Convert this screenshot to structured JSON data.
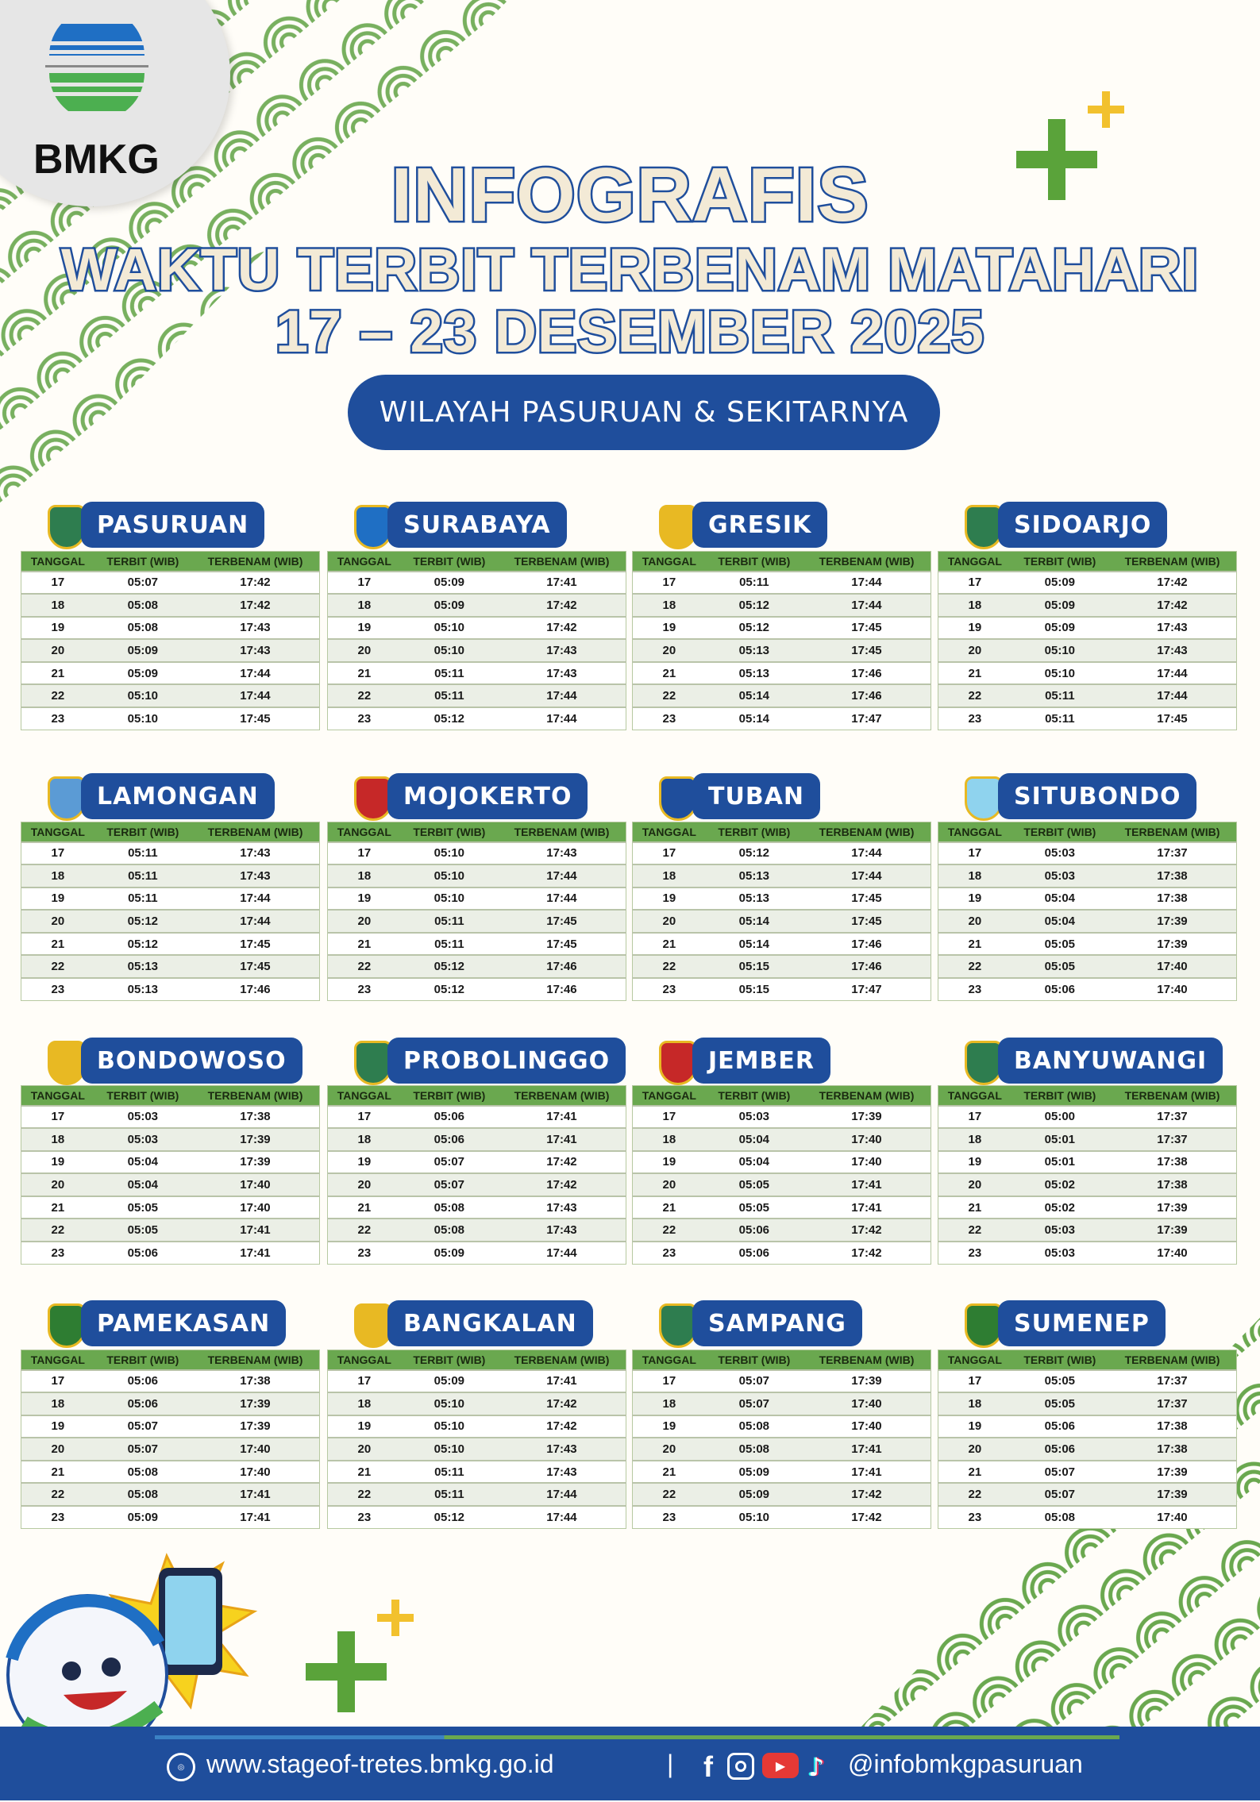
{
  "header": {
    "logo_text": "BMKG",
    "title_line1": "INFOGRAFIS",
    "title_line2": "WAKTU TERBIT TERBENAM MATAHARI",
    "title_line3": "17 – 23 DESEMBER 2025",
    "region": "WILAYAH PASURUAN & SEKITARNYA"
  },
  "columns": [
    "TANGGAL",
    "TERBIT (WIB)",
    "TERBENAM (WIB)"
  ],
  "colors": {
    "primary_blue": "#1f4e9c",
    "header_green": "#6aa84f",
    "title_cream": "#f3ead6",
    "accent_yellow": "#f2c12e"
  },
  "regions": [
    {
      "name": "PASURUAN",
      "rows": [
        [
          "17",
          "05:07",
          "17:42"
        ],
        [
          "18",
          "05:08",
          "17:42"
        ],
        [
          "19",
          "05:08",
          "17:43"
        ],
        [
          "20",
          "05:09",
          "17:43"
        ],
        [
          "21",
          "05:09",
          "17:44"
        ],
        [
          "22",
          "05:10",
          "17:44"
        ],
        [
          "23",
          "05:10",
          "17:45"
        ]
      ]
    },
    {
      "name": "SURABAYA",
      "rows": [
        [
          "17",
          "05:09",
          "17:41"
        ],
        [
          "18",
          "05:09",
          "17:42"
        ],
        [
          "19",
          "05:10",
          "17:42"
        ],
        [
          "20",
          "05:10",
          "17:43"
        ],
        [
          "21",
          "05:11",
          "17:43"
        ],
        [
          "22",
          "05:11",
          "17:44"
        ],
        [
          "23",
          "05:12",
          "17:44"
        ]
      ]
    },
    {
      "name": "GRESIK",
      "rows": [
        [
          "17",
          "05:11",
          "17:44"
        ],
        [
          "18",
          "05:12",
          "17:44"
        ],
        [
          "19",
          "05:12",
          "17:45"
        ],
        [
          "20",
          "05:13",
          "17:45"
        ],
        [
          "21",
          "05:13",
          "17:46"
        ],
        [
          "22",
          "05:14",
          "17:46"
        ],
        [
          "23",
          "05:14",
          "17:47"
        ]
      ]
    },
    {
      "name": "SIDOARJO",
      "rows": [
        [
          "17",
          "05:09",
          "17:42"
        ],
        [
          "18",
          "05:09",
          "17:42"
        ],
        [
          "19",
          "05:09",
          "17:43"
        ],
        [
          "20",
          "05:10",
          "17:43"
        ],
        [
          "21",
          "05:10",
          "17:44"
        ],
        [
          "22",
          "05:11",
          "17:44"
        ],
        [
          "23",
          "05:11",
          "17:45"
        ]
      ]
    },
    {
      "name": "LAMONGAN",
      "rows": [
        [
          "17",
          "05:11",
          "17:43"
        ],
        [
          "18",
          "05:11",
          "17:43"
        ],
        [
          "19",
          "05:11",
          "17:44"
        ],
        [
          "20",
          "05:12",
          "17:44"
        ],
        [
          "21",
          "05:12",
          "17:45"
        ],
        [
          "22",
          "05:13",
          "17:45"
        ],
        [
          "23",
          "05:13",
          "17:46"
        ]
      ]
    },
    {
      "name": "MOJOKERTO",
      "rows": [
        [
          "17",
          "05:10",
          "17:43"
        ],
        [
          "18",
          "05:10",
          "17:44"
        ],
        [
          "19",
          "05:10",
          "17:44"
        ],
        [
          "20",
          "05:11",
          "17:45"
        ],
        [
          "21",
          "05:11",
          "17:45"
        ],
        [
          "22",
          "05:12",
          "17:46"
        ],
        [
          "23",
          "05:12",
          "17:46"
        ]
      ]
    },
    {
      "name": "TUBAN",
      "rows": [
        [
          "17",
          "05:12",
          "17:44"
        ],
        [
          "18",
          "05:13",
          "17:44"
        ],
        [
          "19",
          "05:13",
          "17:45"
        ],
        [
          "20",
          "05:14",
          "17:45"
        ],
        [
          "21",
          "05:14",
          "17:46"
        ],
        [
          "22",
          "05:15",
          "17:46"
        ],
        [
          "23",
          "05:15",
          "17:47"
        ]
      ]
    },
    {
      "name": "SITUBONDO",
      "rows": [
        [
          "17",
          "05:03",
          "17:37"
        ],
        [
          "18",
          "05:03",
          "17:38"
        ],
        [
          "19",
          "05:04",
          "17:38"
        ],
        [
          "20",
          "05:04",
          "17:39"
        ],
        [
          "21",
          "05:05",
          "17:39"
        ],
        [
          "22",
          "05:05",
          "17:40"
        ],
        [
          "23",
          "05:06",
          "17:40"
        ]
      ]
    },
    {
      "name": "BONDOWOSO",
      "rows": [
        [
          "17",
          "05:03",
          "17:38"
        ],
        [
          "18",
          "05:03",
          "17:39"
        ],
        [
          "19",
          "05:04",
          "17:39"
        ],
        [
          "20",
          "05:04",
          "17:40"
        ],
        [
          "21",
          "05:05",
          "17:40"
        ],
        [
          "22",
          "05:05",
          "17:41"
        ],
        [
          "23",
          "05:06",
          "17:41"
        ]
      ]
    },
    {
      "name": "PROBOLINGGO",
      "rows": [
        [
          "17",
          "05:06",
          "17:41"
        ],
        [
          "18",
          "05:06",
          "17:41"
        ],
        [
          "19",
          "05:07",
          "17:42"
        ],
        [
          "20",
          "05:07",
          "17:42"
        ],
        [
          "21",
          "05:08",
          "17:43"
        ],
        [
          "22",
          "05:08",
          "17:43"
        ],
        [
          "23",
          "05:09",
          "17:44"
        ]
      ]
    },
    {
      "name": "JEMBER",
      "rows": [
        [
          "17",
          "05:03",
          "17:39"
        ],
        [
          "18",
          "05:04",
          "17:40"
        ],
        [
          "19",
          "05:04",
          "17:40"
        ],
        [
          "20",
          "05:05",
          "17:41"
        ],
        [
          "21",
          "05:05",
          "17:41"
        ],
        [
          "22",
          "05:06",
          "17:42"
        ],
        [
          "23",
          "05:06",
          "17:42"
        ]
      ]
    },
    {
      "name": "BANYUWANGI",
      "rows": [
        [
          "17",
          "05:00",
          "17:37"
        ],
        [
          "18",
          "05:01",
          "17:37"
        ],
        [
          "19",
          "05:01",
          "17:38"
        ],
        [
          "20",
          "05:02",
          "17:38"
        ],
        [
          "21",
          "05:02",
          "17:39"
        ],
        [
          "22",
          "05:03",
          "17:39"
        ],
        [
          "23",
          "05:03",
          "17:40"
        ]
      ]
    },
    {
      "name": "PAMEKASAN",
      "rows": [
        [
          "17",
          "05:06",
          "17:38"
        ],
        [
          "18",
          "05:06",
          "17:39"
        ],
        [
          "19",
          "05:07",
          "17:39"
        ],
        [
          "20",
          "05:07",
          "17:40"
        ],
        [
          "21",
          "05:08",
          "17:40"
        ],
        [
          "22",
          "05:08",
          "17:41"
        ],
        [
          "23",
          "05:09",
          "17:41"
        ]
      ]
    },
    {
      "name": "BANGKALAN",
      "rows": [
        [
          "17",
          "05:09",
          "17:41"
        ],
        [
          "18",
          "05:10",
          "17:42"
        ],
        [
          "19",
          "05:10",
          "17:42"
        ],
        [
          "20",
          "05:10",
          "17:43"
        ],
        [
          "21",
          "05:11",
          "17:43"
        ],
        [
          "22",
          "05:11",
          "17:44"
        ],
        [
          "23",
          "05:12",
          "17:44"
        ]
      ]
    },
    {
      "name": "SAMPANG",
      "rows": [
        [
          "17",
          "05:07",
          "17:39"
        ],
        [
          "18",
          "05:07",
          "17:40"
        ],
        [
          "19",
          "05:08",
          "17:40"
        ],
        [
          "20",
          "05:08",
          "17:41"
        ],
        [
          "21",
          "05:09",
          "17:41"
        ],
        [
          "22",
          "05:09",
          "17:42"
        ],
        [
          "23",
          "05:10",
          "17:42"
        ]
      ]
    },
    {
      "name": "SUMENEP",
      "rows": [
        [
          "17",
          "05:05",
          "17:37"
        ],
        [
          "18",
          "05:05",
          "17:37"
        ],
        [
          "19",
          "05:06",
          "17:38"
        ],
        [
          "20",
          "05:06",
          "17:38"
        ],
        [
          "21",
          "05:07",
          "17:39"
        ],
        [
          "22",
          "05:07",
          "17:39"
        ],
        [
          "23",
          "05:08",
          "17:40"
        ]
      ]
    }
  ],
  "footer": {
    "website": "www.stageof-tretes.bmkg.go.id",
    "separator": "|",
    "social_handle": "@infobmkgpasuruan",
    "icons": [
      "globe-icon",
      "facebook-icon",
      "instagram-icon",
      "youtube-icon",
      "tiktok-icon"
    ]
  }
}
